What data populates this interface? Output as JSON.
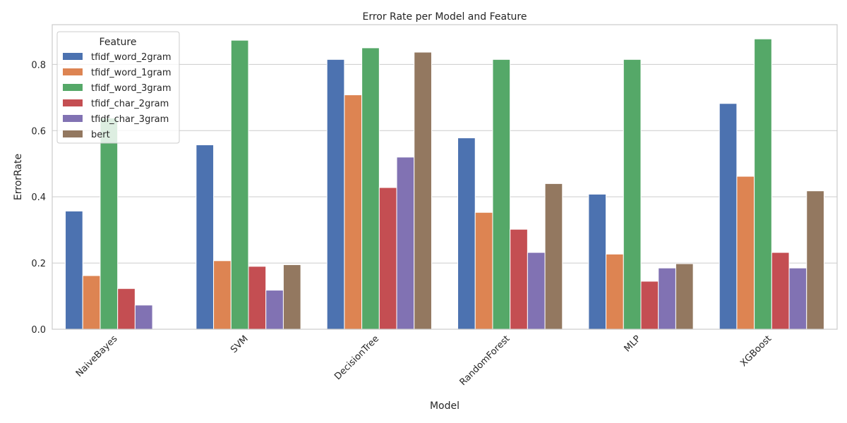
{
  "chart_data": {
    "type": "bar",
    "title": "Error Rate per Model and Feature",
    "xlabel": "Model",
    "ylabel": "ErrorRate",
    "ylim": [
      0,
      0.92
    ],
    "yticks": [
      0.0,
      0.2,
      0.4,
      0.6,
      0.8
    ],
    "ytick_labels": [
      "0.0",
      "0.2",
      "0.4",
      "0.6",
      "0.8"
    ],
    "grid": "horizontal",
    "legend_title": "Feature",
    "legend_position": "top-left",
    "categories": [
      "NaiveBayes",
      "SVM",
      "DecisionTree",
      "RandomForest",
      "MLP",
      "XGBoost"
    ],
    "series": [
      {
        "name": "tfidf_word_2gram",
        "color": "#4c72b0",
        "values": [
          0.357,
          0.557,
          0.815,
          0.578,
          0.408,
          0.682
        ]
      },
      {
        "name": "tfidf_word_1gram",
        "color": "#dd8452",
        "values": [
          0.162,
          0.207,
          0.708,
          0.353,
          0.227,
          0.462
        ]
      },
      {
        "name": "tfidf_word_3gram",
        "color": "#55a868",
        "values": [
          0.638,
          0.873,
          0.85,
          0.815,
          0.815,
          0.877
        ]
      },
      {
        "name": "tfidf_char_2gram",
        "color": "#c44e52",
        "values": [
          0.123,
          0.19,
          0.428,
          0.302,
          0.145,
          0.232
        ]
      },
      {
        "name": "tfidf_char_3gram",
        "color": "#8172b3",
        "values": [
          0.073,
          0.118,
          0.52,
          0.232,
          0.185,
          0.185
        ]
      },
      {
        "name": "bert",
        "color": "#937860",
        "values": [
          0.0,
          0.195,
          0.837,
          0.44,
          0.198,
          0.418
        ]
      }
    ]
  }
}
